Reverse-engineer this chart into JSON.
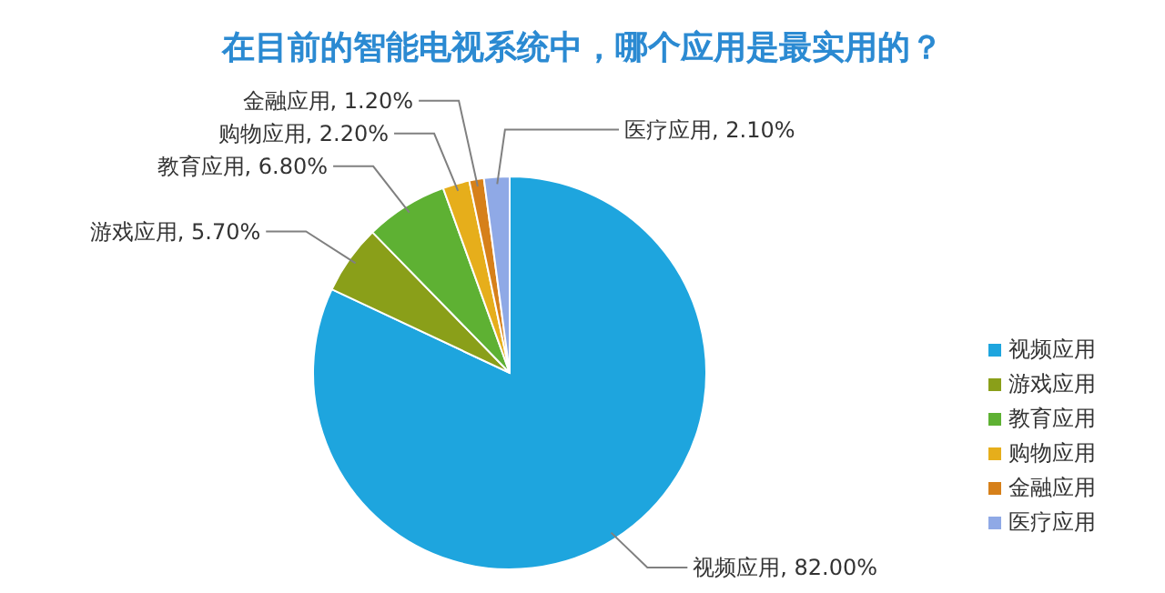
{
  "chart_data": {
    "type": "pie",
    "title": "在目前的智能电视系统中，哪个应用是最实用的？",
    "categories": [
      "视频应用",
      "游戏应用",
      "教育应用",
      "购物应用",
      "金融应用",
      "医疗应用"
    ],
    "values": [
      82,
      5.7,
      6.8,
      2.2,
      1.2,
      2.1
    ],
    "value_labels": [
      "视频应用, 82.00%",
      "游戏应用, 5.70%",
      "教育应用, 6.80%",
      "购物应用, 2.20%",
      "金融应用, 1.20%",
      "医疗应用, 2.10%"
    ],
    "colors": [
      "#1ea5de",
      "#8a9f19",
      "#5eb133",
      "#e6ae1b",
      "#d6801a",
      "#8fa9e6"
    ],
    "legend": "right"
  }
}
